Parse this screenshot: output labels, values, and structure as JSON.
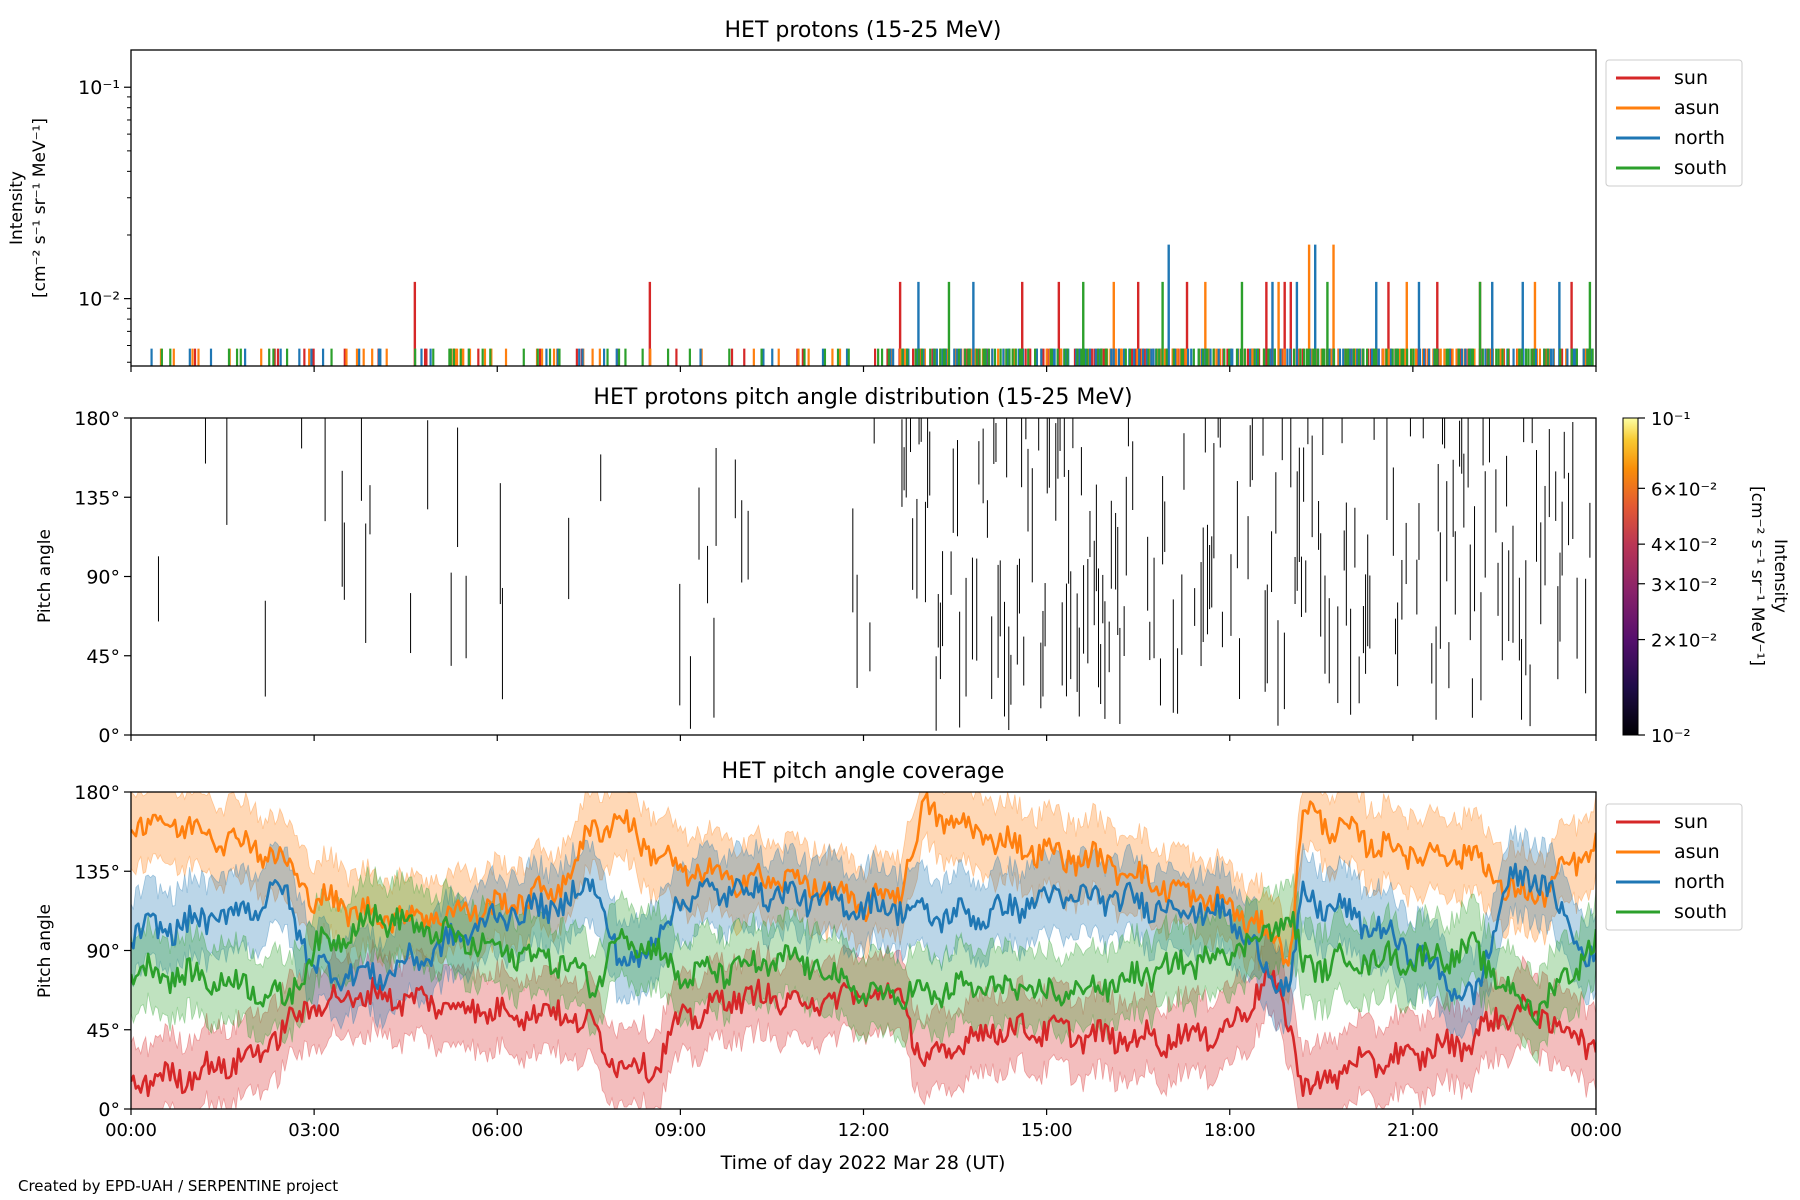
{
  "figure": {
    "footer": "Created by EPD-UAH / SERPENTINE project",
    "xlabel": "Time of day 2022 Mar 28 (UT)",
    "xticks": [
      "00:00",
      "03:00",
      "06:00",
      "09:00",
      "12:00",
      "15:00",
      "18:00",
      "21:00",
      "00:00"
    ],
    "series_colors": {
      "sun": "#d62728",
      "asun": "#ff7f0e",
      "north": "#1f77b4",
      "south": "#2ca02c"
    }
  },
  "chart_data": [
    {
      "type": "line",
      "title": "HET protons (15-25 MeV)",
      "ylabel_lines": [
        "Intensity",
        "[cm⁻² s⁻¹ sr⁻¹ MeV⁻¹]"
      ],
      "yscale": "log",
      "ylim": [
        0.0048,
        0.15
      ],
      "yticks": [
        {
          "value": 0.01,
          "label": "10⁻²"
        },
        {
          "value": 0.1,
          "label": "10⁻¹"
        }
      ],
      "xlim_hours": [
        0,
        24
      ],
      "legend_position": "outside-upper-right",
      "series": [
        {
          "name": "sun",
          "color": "#d62728",
          "spike_hours": [
            4.65,
            8.5,
            12.6,
            14.6,
            15.2,
            16.5,
            17.3,
            18.6,
            18.9,
            19.0,
            20.6,
            21.4,
            22.1,
            23.6
          ],
          "spike_values": [
            0.012,
            0.012,
            0.012,
            0.012,
            0.012,
            0.012,
            0.012,
            0.012,
            0.012,
            0.012,
            0.012,
            0.012,
            0.012,
            0.012
          ],
          "baseline": 0.0058
        },
        {
          "name": "asun",
          "color": "#ff7f0e",
          "spike_hours": [
            16.1,
            17.6,
            18.8,
            19.3,
            19.7,
            20.9,
            23.0
          ],
          "spike_values": [
            0.012,
            0.012,
            0.012,
            0.018,
            0.018,
            0.012,
            0.012
          ],
          "baseline": 0.0058
        },
        {
          "name": "north",
          "color": "#1f77b4",
          "spike_hours": [
            12.9,
            13.8,
            17.0,
            18.7,
            19.1,
            19.4,
            20.4,
            21.1,
            22.3,
            22.8,
            23.4
          ],
          "spike_values": [
            0.012,
            0.012,
            0.018,
            0.012,
            0.012,
            0.018,
            0.012,
            0.012,
            0.012,
            0.012,
            0.012
          ],
          "baseline": 0.0058
        },
        {
          "name": "south",
          "color": "#2ca02c",
          "spike_hours": [
            13.4,
            15.6,
            16.9,
            18.2,
            19.6,
            22.1,
            23.9
          ],
          "spike_values": [
            0.012,
            0.012,
            0.012,
            0.012,
            0.012,
            0.012,
            0.012
          ],
          "baseline": 0.0058
        }
      ]
    },
    {
      "type": "heatmap",
      "title": "HET protons pitch angle distribution (15-25 MeV)",
      "ylabel": "Pitch angle",
      "ylim": [
        0,
        180
      ],
      "yticks": [
        "0°",
        "45°",
        "90°",
        "135°",
        "180°"
      ],
      "xlim_hours": [
        0,
        24
      ],
      "colorbar": {
        "label_lines": [
          "Intensity",
          "[cm⁻² s⁻¹ sr⁻¹ MeV⁻¹]"
        ],
        "scale": "log",
        "range": [
          0.01,
          0.1
        ],
        "colormap": "inferno",
        "ticks": [
          {
            "value": 0.1,
            "label": "10⁻¹"
          },
          {
            "value": 0.06,
            "label": "6×10⁻²"
          },
          {
            "value": 0.04,
            "label": "4×10⁻²"
          },
          {
            "value": 0.03,
            "label": "3×10⁻²"
          },
          {
            "value": 0.02,
            "label": "2×10⁻²"
          },
          {
            "value": 0.01,
            "label": "10⁻²"
          }
        ]
      },
      "note": "sparse short vertical strokes; density increases strongly after 12:30"
    },
    {
      "type": "line",
      "title": "HET pitch angle coverage",
      "ylabel": "Pitch angle",
      "ylim": [
        0,
        180
      ],
      "yticks": [
        "0°",
        "45°",
        "90°",
        "135°",
        "180°"
      ],
      "xlim_hours": [
        0,
        24
      ],
      "legend_position": "outside-upper-right",
      "band_halfwidth_deg": 22,
      "series": [
        {
          "name": "sun",
          "color": "#d62728",
          "x": [
            0,
            1,
            2,
            2.5,
            3,
            4,
            5,
            6,
            7,
            7.6,
            8,
            8.6,
            9,
            10,
            11,
            12,
            12.6,
            13,
            14,
            15,
            16,
            17,
            18,
            18.6,
            19,
            19.2,
            20,
            21,
            22,
            22.5,
            23,
            24
          ],
          "y": [
            15,
            20,
            30,
            45,
            60,
            65,
            60,
            55,
            55,
            45,
            25,
            25,
            50,
            65,
            60,
            65,
            65,
            25,
            45,
            45,
            40,
            40,
            45,
            75,
            50,
            10,
            25,
            30,
            40,
            55,
            55,
            35
          ]
        },
        {
          "name": "asun",
          "color": "#ff7f0e",
          "x": [
            0,
            1,
            2,
            2.5,
            3,
            4,
            5,
            6,
            7,
            7.6,
            8,
            8.6,
            9,
            10,
            11,
            12,
            12.6,
            13,
            14,
            15,
            16,
            17,
            18,
            18.6,
            19,
            19.2,
            20,
            21,
            22,
            22.5,
            23,
            24
          ],
          "y": [
            165,
            160,
            150,
            140,
            120,
            110,
            110,
            115,
            125,
            160,
            165,
            145,
            135,
            130,
            130,
            115,
            125,
            170,
            155,
            145,
            140,
            125,
            115,
            100,
            90,
            170,
            155,
            145,
            145,
            125,
            120,
            150
          ]
        },
        {
          "name": "north",
          "color": "#1f77b4",
          "x": [
            0,
            1,
            2,
            2.5,
            3,
            4,
            5,
            6,
            7,
            7.6,
            8,
            8.6,
            9,
            10,
            11,
            12,
            12.6,
            13,
            14,
            15,
            16,
            17,
            18,
            18.6,
            19,
            19.2,
            20,
            21,
            22,
            22.5,
            23,
            24
          ],
          "y": [
            100,
            105,
            115,
            125,
            80,
            75,
            90,
            110,
            115,
            130,
            80,
            95,
            120,
            125,
            120,
            115,
            115,
            110,
            110,
            120,
            120,
            115,
            110,
            80,
            70,
            120,
            110,
            90,
            60,
            125,
            135,
            80
          ]
        },
        {
          "name": "south",
          "color": "#2ca02c",
          "x": [
            0,
            1,
            2,
            2.5,
            3,
            4,
            5,
            6,
            7,
            7.6,
            8,
            8.6,
            9,
            10,
            11,
            12,
            12.6,
            13,
            14,
            15,
            16,
            17,
            18,
            18.6,
            19,
            19.2,
            20,
            21,
            22,
            22.5,
            23,
            24
          ],
          "y": [
            80,
            75,
            70,
            60,
            90,
            110,
            100,
            90,
            85,
            70,
            100,
            90,
            75,
            80,
            85,
            65,
            65,
            65,
            70,
            65,
            70,
            80,
            90,
            100,
            110,
            80,
            85,
            85,
            90,
            70,
            55,
            95
          ]
        }
      ]
    }
  ]
}
